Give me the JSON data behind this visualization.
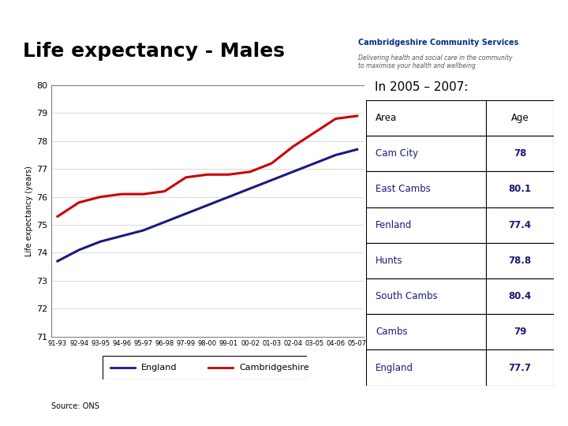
{
  "title": "Life expectancy - Males",
  "source": "Source: ONS",
  "x_labels": [
    "91-93",
    "92-94",
    "93-95",
    "94-96",
    "95-97",
    "96-98",
    "97-99",
    "98-00",
    "99-01",
    "00-02",
    "01-03",
    "02-04",
    "03-05",
    "04-06",
    "05-07"
  ],
  "england": [
    73.7,
    74.1,
    74.4,
    74.6,
    74.8,
    75.1,
    75.4,
    75.7,
    76.0,
    76.3,
    76.6,
    76.9,
    77.2,
    77.5,
    77.7
  ],
  "cambridgeshire": [
    75.3,
    75.8,
    76.0,
    76.1,
    76.1,
    76.2,
    76.7,
    76.8,
    76.8,
    76.9,
    77.2,
    77.8,
    78.3,
    78.8,
    78.9
  ],
  "england_color": "#1a1a7c",
  "cambs_color": "#cc0000",
  "ylim": [
    71,
    80
  ],
  "yticks": [
    71,
    72,
    73,
    74,
    75,
    76,
    77,
    78,
    79,
    80
  ],
  "ylabel": "Life expectancy (years)",
  "table_title": "In 2005 – 2007:",
  "table_areas": [
    "Area",
    "Cam City",
    "East Cambs",
    "Fenland",
    "Hunts",
    "South Cambs",
    "Cambs",
    "England"
  ],
  "table_ages": [
    "Age",
    "78",
    "80.1",
    "77.4",
    "78.8",
    "80.4",
    "79",
    "77.7"
  ],
  "table_area_bold": [
    false,
    false,
    false,
    false,
    false,
    false,
    false,
    false
  ],
  "table_age_bold": [
    false,
    true,
    true,
    true,
    true,
    true,
    true,
    true
  ],
  "table_text_color": "#1a1a7c",
  "table_header_color": "#000000",
  "nhs_blue": "#003087",
  "cambs_org_color": "#003087",
  "bg_color": "#ffffff"
}
